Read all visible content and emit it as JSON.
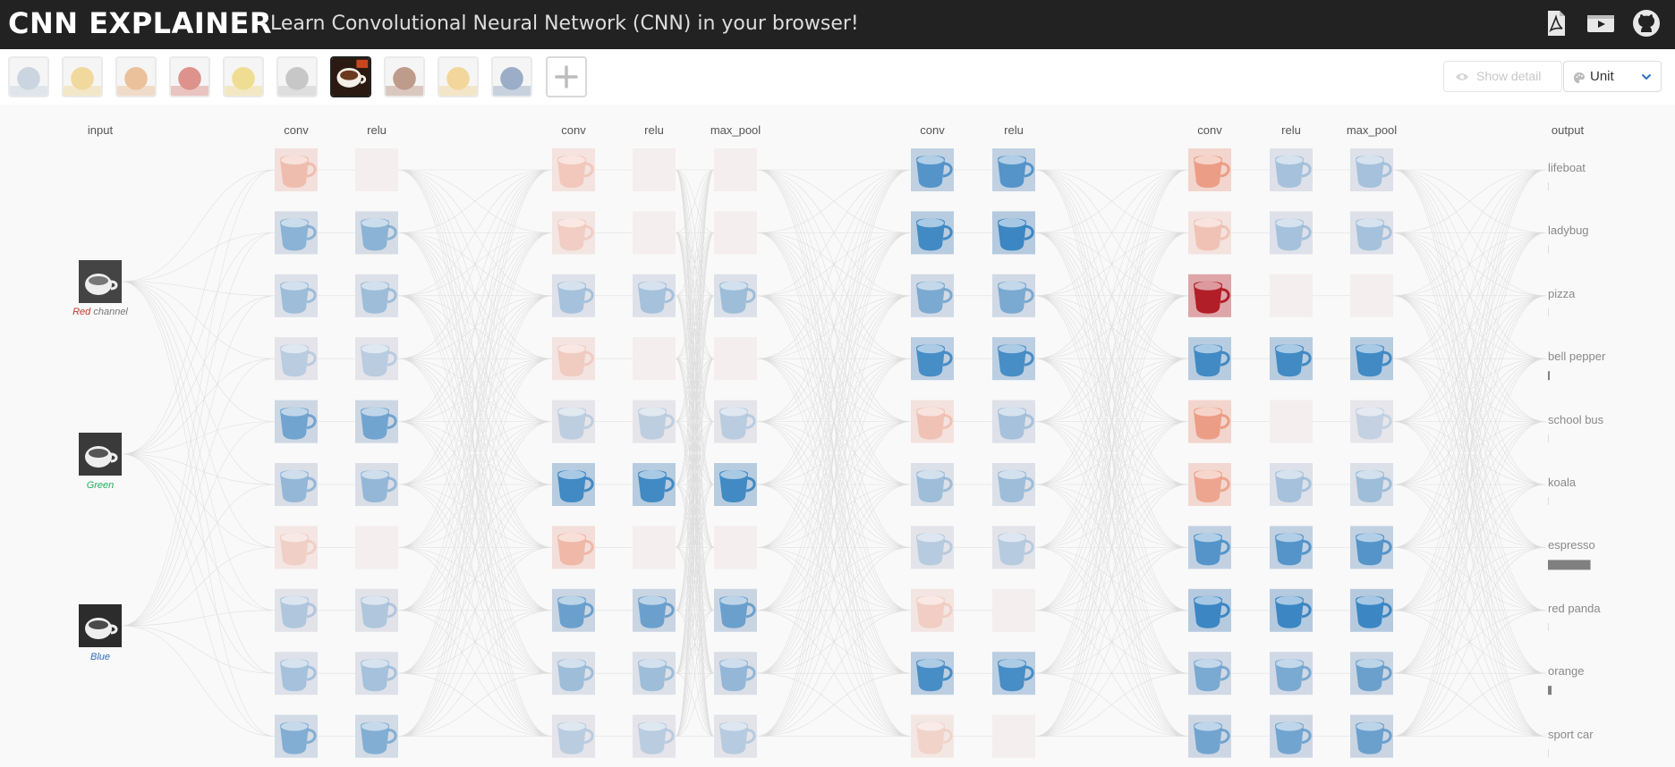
{
  "app": {
    "title": "CNN EXPLAINER",
    "subtitle": "Learn Convolutional Neural Network (CNN) in your browser!"
  },
  "header_icons": [
    "pdf-icon",
    "video-icon",
    "github-icon"
  ],
  "image_picker": {
    "items": [
      {
        "name": "lifeboat",
        "selected": false
      },
      {
        "name": "ladybug",
        "selected": false
      },
      {
        "name": "pizza",
        "selected": false
      },
      {
        "name": "bell pepper",
        "selected": false
      },
      {
        "name": "school bus",
        "selected": false
      },
      {
        "name": "koala",
        "selected": false
      },
      {
        "name": "espresso",
        "selected": true
      },
      {
        "name": "red panda",
        "selected": false
      },
      {
        "name": "orange",
        "selected": false
      },
      {
        "name": "sport car",
        "selected": false
      }
    ],
    "add_icon": "plus-icon"
  },
  "controls": {
    "show_detail_label": "Show detail",
    "show_detail_icon": "eye-icon",
    "scale_value": "Unit",
    "scale_icon": "palette-icon"
  },
  "layers": [
    {
      "label": "input"
    },
    {
      "label": "conv"
    },
    {
      "label": "relu"
    },
    {
      "label": "conv"
    },
    {
      "label": "relu"
    },
    {
      "label": "max_pool"
    },
    {
      "label": "conv"
    },
    {
      "label": "relu"
    },
    {
      "label": "conv"
    },
    {
      "label": "relu"
    },
    {
      "label": "max_pool"
    },
    {
      "label": "output"
    }
  ],
  "input_channels": [
    {
      "label": "Red channel",
      "color": "#c0392b"
    },
    {
      "label": "Green",
      "color": "#27ae60"
    },
    {
      "label": "Blue",
      "color": "#2e6fc0"
    }
  ],
  "output": {
    "classes": [
      "lifeboat",
      "ladybug",
      "pizza",
      "bell pepper",
      "school bus",
      "koala",
      "espresso",
      "red panda",
      "orange",
      "sport car"
    ],
    "probabilities": [
      0.0,
      0.0,
      0.0,
      0.02,
      0.0,
      0.0,
      0.82,
      0.0,
      0.07,
      0.0
    ]
  },
  "activations": [
    [
      0.25,
      0.35,
      0.25,
      0.1,
      0.5,
      0.3,
      0.08,
      0.15,
      0.2,
      0.4
    ],
    [
      0.02,
      0.35,
      0.25,
      0.1,
      0.5,
      0.3,
      0.03,
      0.15,
      0.2,
      0.4
    ],
    [
      0.15,
      0.1,
      0.2,
      0.12,
      0.08,
      0.85,
      0.3,
      0.55,
      0.25,
      0.1
    ],
    [
      0.03,
      0.02,
      0.2,
      0.02,
      0.08,
      0.85,
      0.03,
      0.55,
      0.25,
      0.1
    ],
    [
      0.03,
      0.02,
      0.25,
      0.02,
      0.1,
      0.85,
      0.03,
      0.55,
      0.3,
      0.12
    ],
    [
      0.7,
      0.85,
      0.45,
      0.8,
      0.2,
      0.25,
      0.12,
      0.1,
      0.8,
      0.05
    ],
    [
      0.7,
      0.9,
      0.45,
      0.8,
      0.2,
      0.25,
      0.12,
      0.05,
      0.8,
      0.03
    ],
    [
      0.6,
      0.2,
      0.95,
      0.85,
      0.6,
      0.5,
      0.7,
      0.9,
      0.45,
      0.5
    ],
    [
      0.2,
      0.2,
      0.03,
      0.85,
      0.03,
      0.2,
      0.7,
      0.9,
      0.45,
      0.5
    ],
    [
      0.2,
      0.2,
      0.03,
      0.85,
      0.05,
      0.25,
      0.7,
      0.9,
      0.55,
      0.55
    ]
  ],
  "activation_signs": [
    [
      "r",
      "b",
      "b",
      "b",
      "b",
      "b",
      "r",
      "b",
      "b",
      "b"
    ],
    [
      "n",
      "b",
      "b",
      "b",
      "b",
      "b",
      "n",
      "b",
      "b",
      "b"
    ],
    [
      "r",
      "r",
      "b",
      "r",
      "b",
      "b",
      "r",
      "b",
      "b",
      "b"
    ],
    [
      "n",
      "n",
      "b",
      "n",
      "b",
      "b",
      "n",
      "b",
      "b",
      "b"
    ],
    [
      "n",
      "n",
      "b",
      "n",
      "b",
      "b",
      "n",
      "b",
      "b",
      "b"
    ],
    [
      "b",
      "b",
      "b",
      "b",
      "r",
      "b",
      "b",
      "r",
      "b",
      "r"
    ],
    [
      "b",
      "b",
      "b",
      "b",
      "b",
      "b",
      "b",
      "n",
      "b",
      "n"
    ],
    [
      "r",
      "r",
      "r",
      "b",
      "r",
      "r",
      "b",
      "b",
      "b",
      "b"
    ],
    [
      "b",
      "b",
      "n",
      "b",
      "n",
      "b",
      "b",
      "b",
      "b",
      "b"
    ],
    [
      "b",
      "b",
      "n",
      "b",
      "b",
      "b",
      "b",
      "b",
      "b",
      "b"
    ]
  ]
}
